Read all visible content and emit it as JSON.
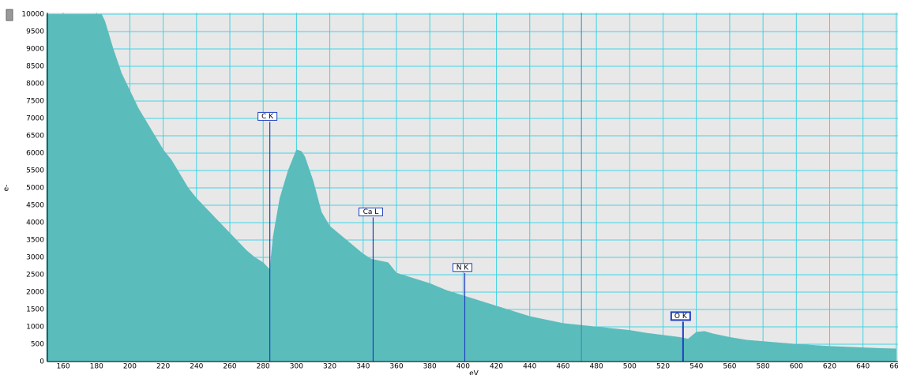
{
  "chart_data": {
    "type": "area",
    "x_label": "eV",
    "y_label": "e-",
    "color": "#5bbcbc",
    "grid": true,
    "x": [
      150,
      155,
      160,
      165,
      170,
      175,
      180,
      183,
      185,
      190,
      195,
      200,
      205,
      210,
      215,
      220,
      225,
      230,
      235,
      240,
      245,
      250,
      255,
      260,
      265,
      270,
      275,
      280,
      284,
      286,
      290,
      295,
      300,
      303,
      305,
      310,
      315,
      320,
      325,
      330,
      335,
      340,
      345,
      350,
      355,
      360,
      370,
      380,
      390,
      400,
      410,
      420,
      430,
      440,
      450,
      460,
      470,
      480,
      490,
      500,
      510,
      520,
      530,
      535,
      540,
      545,
      550,
      560,
      570,
      580,
      590,
      600,
      610,
      620,
      630,
      640,
      650,
      660
    ],
    "values": [
      10000,
      10000,
      10000,
      10000,
      10000,
      10000,
      10000,
      10000,
      9800,
      9000,
      8300,
      7800,
      7300,
      6900,
      6500,
      6100,
      5800,
      5400,
      5000,
      4700,
      4450,
      4200,
      3950,
      3700,
      3450,
      3200,
      3000,
      2850,
      2650,
      3600,
      4700,
      5500,
      6100,
      6050,
      5900,
      5200,
      4300,
      3900,
      3700,
      3500,
      3300,
      3100,
      2950,
      2900,
      2850,
      2550,
      2400,
      2250,
      2050,
      1900,
      1750,
      1600,
      1450,
      1300,
      1200,
      1100,
      1050,
      1000,
      950,
      900,
      820,
      760,
      700,
      650,
      850,
      870,
      800,
      700,
      620,
      580,
      540,
      500,
      470,
      440,
      420,
      400,
      380,
      370
    ],
    "xlim": [
      150.5,
      661
    ],
    "xticks": [
      160,
      180,
      200,
      220,
      240,
      260,
      280,
      300,
      320,
      340,
      360,
      380,
      400,
      420,
      440,
      460,
      480,
      500,
      520,
      540,
      560,
      580,
      600,
      620,
      640,
      660
    ],
    "ylim": [
      0,
      10000
    ],
    "yticks": [
      0,
      500,
      1000,
      1500,
      2000,
      2500,
      3000,
      3500,
      4000,
      4500,
      5000,
      5500,
      6000,
      6500,
      7000,
      7500,
      8000,
      8500,
      9000,
      9500,
      10000
    ],
    "markers": [
      {
        "label": "C K",
        "x": 284,
        "y": 6900
      },
      {
        "label": "Ca L",
        "x": 346,
        "y": 4150
      },
      {
        "label": "N K",
        "x": 401,
        "y": 2550
      },
      {
        "label": "O K",
        "x": 532,
        "y": 1150
      }
    ],
    "reference_lines": [
      471
    ]
  }
}
